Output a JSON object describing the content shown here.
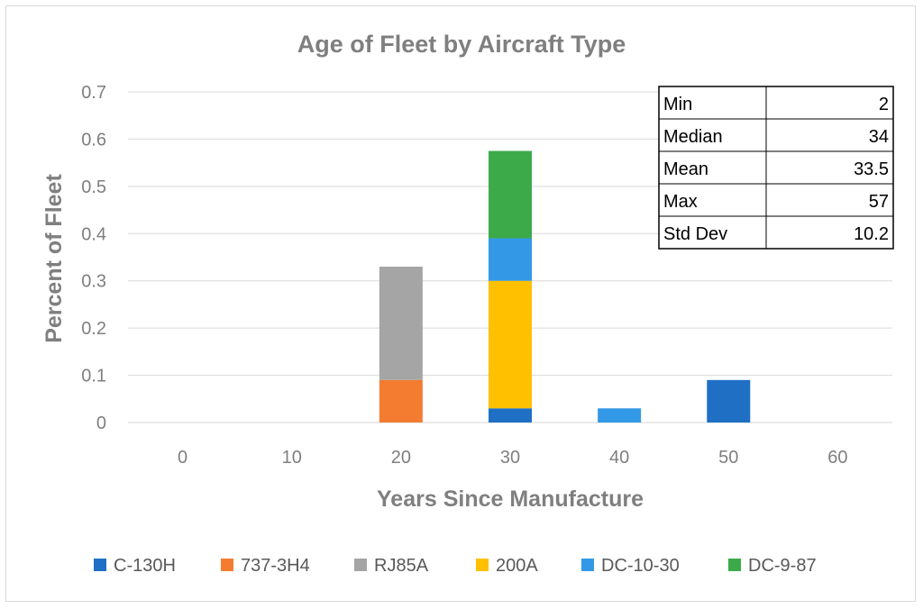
{
  "chart_data": {
    "type": "bar",
    "stacked": true,
    "title": "Age of Fleet by Aircraft Type",
    "xlabel": "Years Since Manufacture",
    "ylabel": "Percent of Fleet",
    "categories": [
      "0",
      "10",
      "20",
      "30",
      "40",
      "50",
      "60"
    ],
    "ylim": [
      0,
      0.7
    ],
    "yticks": [
      0,
      0.1,
      0.2,
      0.3,
      0.4,
      0.5,
      0.6,
      0.7
    ],
    "ytick_labels": [
      "0",
      "0.1",
      "0.2",
      "0.3",
      "0.4",
      "0.5",
      "0.6",
      "0.7"
    ],
    "grid": true,
    "legend_position": "bottom",
    "series": [
      {
        "name": "C-130H",
        "color": "#1f6fc5",
        "values": [
          0,
          0,
          0,
          0.03,
          0,
          0.09,
          0
        ]
      },
      {
        "name": "737-3H4",
        "color": "#f47c30",
        "values": [
          0,
          0,
          0.09,
          0,
          0,
          0,
          0
        ]
      },
      {
        "name": "RJ85A",
        "color": "#a5a5a5",
        "values": [
          0,
          0,
          0.24,
          0,
          0,
          0,
          0
        ]
      },
      {
        "name": "200A",
        "color": "#ffc000",
        "values": [
          0,
          0,
          0,
          0.27,
          0,
          0,
          0
        ]
      },
      {
        "name": "DC-10-30",
        "color": "#3399e6",
        "values": [
          0,
          0,
          0,
          0.09,
          0.03,
          0,
          0
        ]
      },
      {
        "name": "DC-9-87",
        "color": "#3daa4a",
        "values": [
          0,
          0,
          0,
          0.185,
          0,
          0,
          0
        ]
      }
    ],
    "stats_table": [
      {
        "label": "Min",
        "value": "2"
      },
      {
        "label": "Median",
        "value": "34"
      },
      {
        "label": "Mean",
        "value": "33.5"
      },
      {
        "label": "Max",
        "value": "57"
      },
      {
        "label": "Std Dev",
        "value": "10.2"
      }
    ]
  }
}
